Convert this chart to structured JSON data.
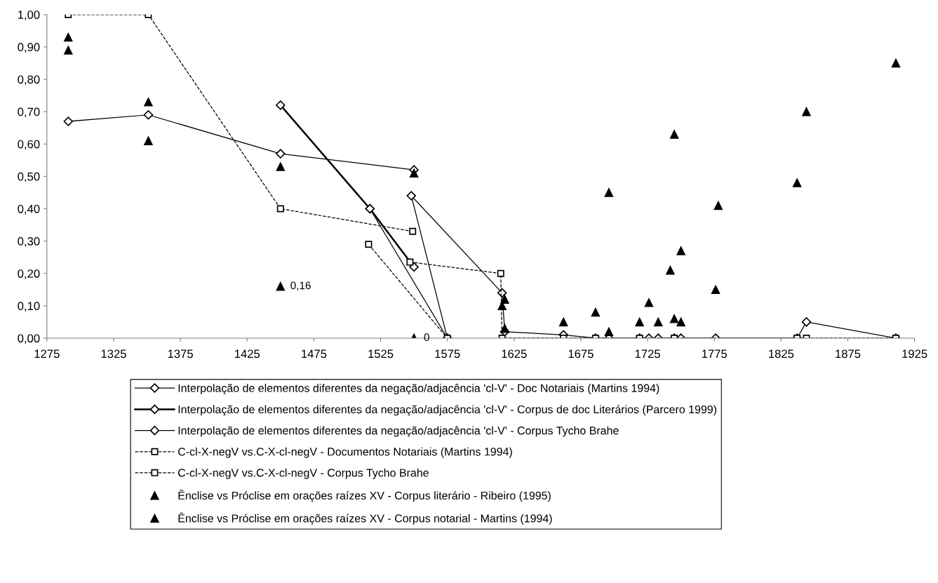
{
  "chart_data": {
    "type": "line",
    "xlim": [
      1275,
      1925
    ],
    "xticks": [
      1275,
      1325,
      1375,
      1425,
      1475,
      1525,
      1575,
      1625,
      1675,
      1725,
      1775,
      1825,
      1875,
      1925
    ],
    "ylim": [
      0,
      1
    ],
    "yticks": [
      {
        "value": 0,
        "label": "0,00"
      },
      {
        "value": 0.1,
        "label": "0,10"
      },
      {
        "value": 0.2,
        "label": "0,20"
      },
      {
        "value": 0.3,
        "label": "0,30"
      },
      {
        "value": 0.4,
        "label": "0,40"
      },
      {
        "value": 0.5,
        "label": "0,50"
      },
      {
        "value": 0.6,
        "label": "0,60"
      },
      {
        "value": 0.7,
        "label": "0,70"
      },
      {
        "value": 0.8,
        "label": "0,80"
      },
      {
        "value": 0.9,
        "label": "0,90"
      },
      {
        "value": 1,
        "label": "1,00"
      }
    ],
    "grid": false,
    "legend": "bottom",
    "series": [
      {
        "name": "Interpolação de elementos diferentes da negação/adjacência 'cl-V' - Doc Notariais (Martins 1994)",
        "color": "#000000",
        "marker": "diamond",
        "line_style": "solid",
        "x": [
          1291,
          1351,
          1450,
          1550,
          1530,
          1517,
          1575
        ],
        "values": [
          0.67,
          0.69,
          0.57,
          0.52,
          null,
          0.4,
          0
        ]
      },
      {
        "name": "Interpolação de elementos diferentes da negação/adjacência 'cl-V' - Corpus de doc Literários (Parcero 1999)",
        "color": "#000000",
        "marker": "diamond",
        "line_style": "solid",
        "x": [
          1450,
          1517,
          1550
        ],
        "values": [
          0.72,
          0.4,
          0.22
        ]
      },
      {
        "name": "Interpolação de elementos diferentes da negação/adjacência 'cl-V' - Corpus Tycho Brahe",
        "color": "#000000",
        "marker": "diamond",
        "line_style": "solid",
        "x": [
          1575,
          1548,
          1616,
          1618,
          1662,
          1686,
          1696,
          1719,
          1726,
          1733,
          1745,
          1750,
          1776,
          1837,
          1844,
          1911
        ],
        "values": [
          0,
          0.44,
          0.14,
          0.02,
          0.01,
          0,
          0,
          0,
          0,
          0,
          0,
          0,
          0,
          0,
          0.05,
          0
        ]
      },
      {
        "name": "C-cl-X-negV vs.C-X-cl-negV - Documentos Notariais (Martins 1994)",
        "color": "#000000",
        "marker": "square",
        "line_style": "dashed",
        "x": [
          1291,
          1351,
          1450,
          1549,
          1530,
          1516,
          1575
        ],
        "values": [
          1,
          1,
          0.4,
          0.33,
          null,
          0.29,
          0
        ]
      },
      {
        "name": "C-cl-X-negV vs.C-X-cl-negV - Corpus Tycho Brahe",
        "color": "#000000",
        "marker": "square",
        "line_style": "dashed",
        "x": [
          1547,
          1615,
          1616,
          1662,
          1686,
          1719,
          1745,
          1837,
          1844,
          1911
        ],
        "values": [
          0.235,
          0.2,
          0,
          0,
          0,
          0,
          0,
          0,
          0,
          0
        ]
      },
      {
        "name": "Ênclise vs Próclise em orações raízes XV - Corpus literário - Ribeiro (1995)",
        "color": "#000000",
        "type": "scatter",
        "marker": "triangle",
        "x": [
          1291,
          1351,
          1450,
          1550,
          1618,
          1662,
          1696,
          1719,
          1742,
          1745,
          1750,
          1778,
          1837,
          1844,
          1911
        ],
        "values": [
          0.93,
          0.73,
          0.53,
          0.51,
          0.12,
          0.05,
          0.45,
          0.05,
          0.21,
          0.63,
          0.27,
          0.41,
          0.48,
          0.7,
          0.85
        ]
      },
      {
        "name": "Ênclise vs Próclise em orações raízes XV - Corpus notarial - Martins (1994)",
        "color": "#000000",
        "type": "scatter",
        "marker": "triangle",
        "x": [
          1291,
          1351,
          1450,
          1550,
          1616,
          1618,
          1686,
          1696,
          1726,
          1733,
          1745,
          1750,
          1776
        ],
        "values": [
          0.89,
          0.61,
          0.16,
          0,
          0.1,
          0.03,
          0.08,
          0.02,
          0.11,
          0.05,
          0.06,
          0.05,
          0.15
        ],
        "value_labels": [
          null,
          null,
          "0,16",
          "0",
          null,
          null,
          null,
          null,
          null,
          null,
          null,
          null,
          null
        ]
      }
    ]
  }
}
